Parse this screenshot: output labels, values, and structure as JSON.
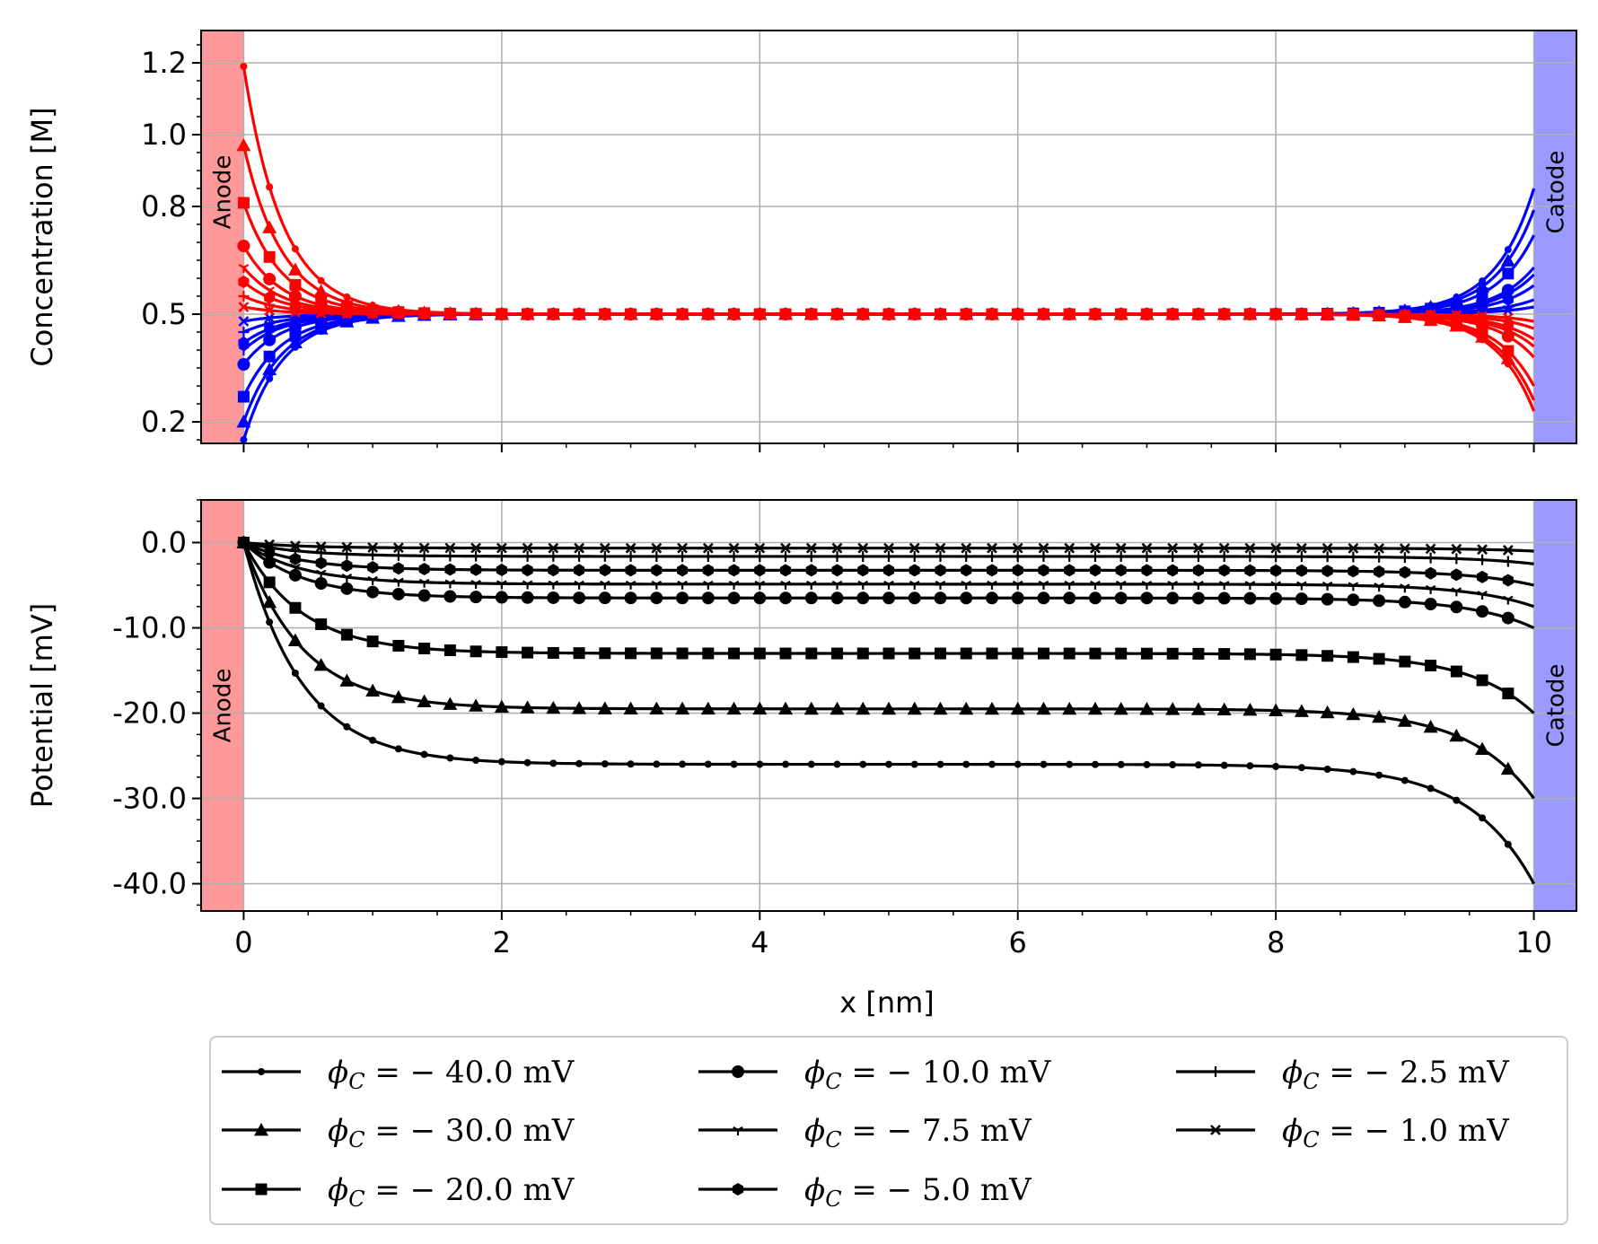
{
  "chart_data": {
    "type": "line",
    "x_unit_positions": [
      0,
      0.2,
      0.4,
      0.6,
      0.8,
      1.0,
      1.2,
      1.4,
      1.6,
      1.8,
      2.0,
      2.2,
      2.4,
      2.6,
      2.8,
      3.0,
      3.2,
      3.4,
      3.6,
      3.8,
      4.0,
      4.2,
      4.4,
      4.6,
      4.8,
      5.0,
      5.2,
      5.4,
      5.6,
      5.8,
      6.0,
      6.2,
      6.4,
      6.6,
      6.8,
      7.0,
      7.2,
      7.4,
      7.6,
      7.8,
      8.0,
      8.2,
      8.4,
      8.6,
      8.8,
      9.0,
      9.2,
      9.4,
      9.6,
      9.8
    ],
    "xlabel": "x [nm]",
    "xlim": [
      -0.33,
      10.33
    ],
    "xticks": [
      "0",
      "2",
      "4",
      "6",
      "8",
      "10"
    ],
    "grid": true,
    "legend_placement": "bottom",
    "electrodes": {
      "anode": {
        "label": "Anode",
        "color": "#ff9999",
        "x_range": [
          -0.33,
          0
        ]
      },
      "cathode": {
        "label": "Catode",
        "color": "#9999ff",
        "x_range": [
          10,
          10.33
        ]
      }
    },
    "series_params": [
      {
        "phi": -40.0,
        "label": "− 40.0 mV",
        "marker": "dot",
        "c0_red": 1.19,
        "c0_blue": 0.15,
        "cL_red": 0.23,
        "cL_blue": 0.85
      },
      {
        "phi": -30.0,
        "label": "− 30.0 mV",
        "marker": "triangle",
        "c0_red": 0.97,
        "c0_blue": 0.2,
        "cL_red": 0.26,
        "cL_blue": 0.79
      },
      {
        "phi": -20.0,
        "label": "− 20.0 mV",
        "marker": "square",
        "c0_red": 0.81,
        "c0_blue": 0.27,
        "cL_red": 0.3,
        "cL_blue": 0.72
      },
      {
        "phi": -10.0,
        "label": "− 10.0 mV",
        "marker": "circle",
        "c0_red": 0.69,
        "c0_blue": 0.36,
        "cL_red": 0.38,
        "cL_blue": 0.63
      },
      {
        "phi": -7.5,
        "label": "− 7.5 mV",
        "marker": "tri_down",
        "c0_red": 0.63,
        "c0_blue": 0.4,
        "cL_red": 0.41,
        "cL_blue": 0.61
      },
      {
        "phi": -5.0,
        "label": "− 5.0 mV",
        "marker": "hexagon",
        "c0_red": 0.59,
        "c0_blue": 0.42,
        "cL_red": 0.43,
        "cL_blue": 0.58
      },
      {
        "phi": -2.5,
        "label": "− 2.5 mV",
        "marker": "plus",
        "c0_red": 0.55,
        "c0_blue": 0.45,
        "cL_red": 0.46,
        "cL_blue": 0.54
      },
      {
        "phi": -1.0,
        "label": "− 1.0 mV",
        "marker": "x",
        "c0_red": 0.52,
        "c0_blue": 0.48,
        "cL_red": 0.48,
        "cL_blue": 0.52
      }
    ],
    "panels": [
      {
        "name": "concentration",
        "ylabel": "Concentration [M]",
        "ylim": [
          0.14,
          1.29
        ],
        "yticks": [
          {
            "v": 0.2,
            "label": "0.2"
          },
          {
            "v": 0.5,
            "label": "0.5"
          },
          {
            "v": 0.8,
            "label": "0.8"
          },
          {
            "v": 1.0,
            "label": "1.0"
          },
          {
            "v": 1.2,
            "label": "1.2"
          }
        ],
        "series_colors": [
          "#ff0000",
          "#0000ff"
        ],
        "bulk_value": 0.5
      },
      {
        "name": "potential",
        "ylabel": "Potential [mV]",
        "ylim": [
          -43.2,
          5.0
        ],
        "yticks": [
          {
            "v": 0,
            "label": "0.0"
          },
          {
            "v": -10,
            "label": "-10.0"
          },
          {
            "v": -20,
            "label": "-20.0"
          },
          {
            "v": -30,
            "label": "-30.0"
          },
          {
            "v": -40,
            "label": "-40.0"
          }
        ],
        "series_colors": [
          "#000000"
        ],
        "plateau_fraction": 0.65
      }
    ],
    "legend_prefix": "ϕ",
    "legend_sub": "C",
    "legend_eq": " = "
  }
}
